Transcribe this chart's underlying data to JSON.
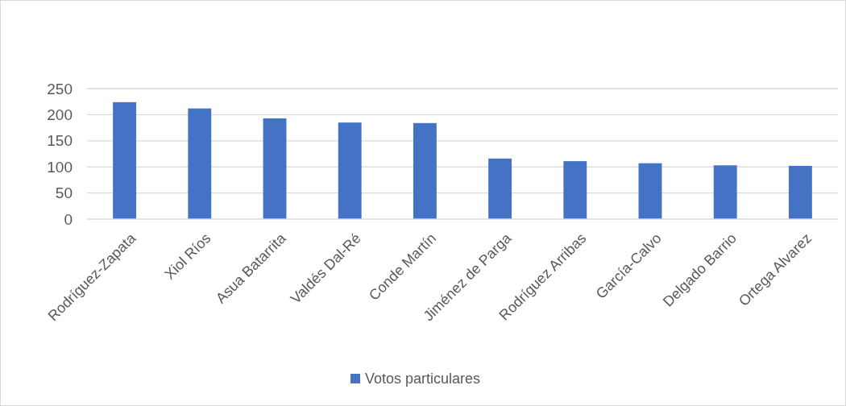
{
  "chart_data": {
    "type": "bar",
    "categories": [
      "Rodríguez-Zapata",
      "Xiol Ríos",
      "Asua Batarrita",
      "Valdés Dal-Ré",
      "Conde Martín",
      "Jiménez de Parga",
      "Rodríguez Arribas",
      "García-Calvo",
      "Delgado Barrio",
      "Ortega Alvarez"
    ],
    "series": [
      {
        "name": "Votos particulares",
        "color": "#4472c4",
        "values": [
          224,
          212,
          193,
          185,
          184,
          116,
          111,
          107,
          103,
          102
        ]
      }
    ],
    "ylim": [
      0,
      250
    ],
    "yticks": [
      0,
      50,
      100,
      150,
      200,
      250
    ],
    "grid": "y",
    "legend": "bottom"
  }
}
